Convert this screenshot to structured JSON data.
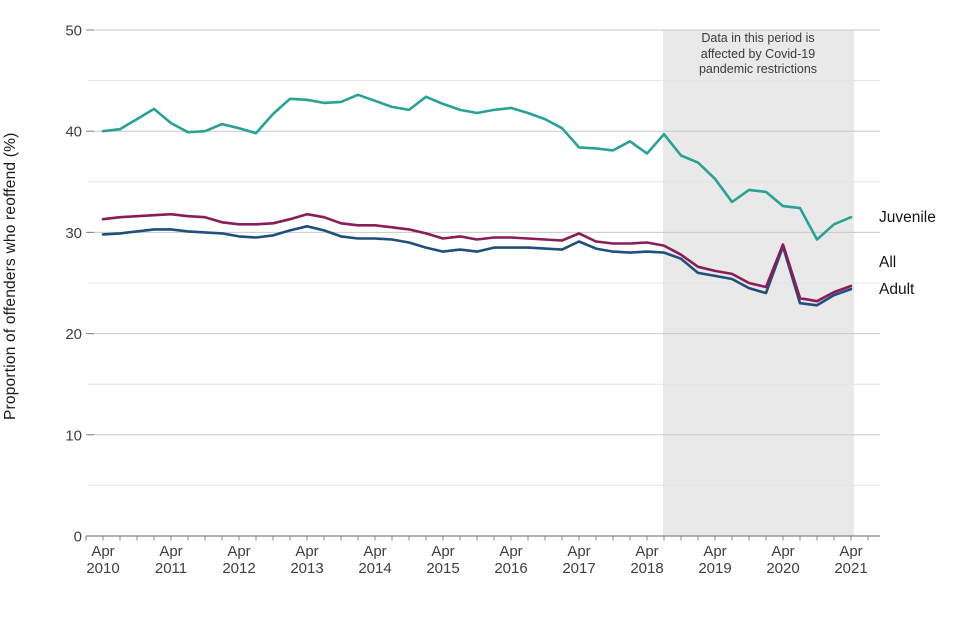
{
  "chart_data": {
    "type": "line",
    "title": "",
    "ylabel": "Proportion of offenders who reoffend (%)",
    "xlabel": "",
    "ylim": [
      0,
      50
    ],
    "yticks_major": [
      50,
      40,
      30,
      20,
      10,
      0
    ],
    "yticks_minor": [
      45,
      35,
      25,
      15,
      5
    ],
    "grid": "horizontal",
    "legend_position": "right-edge-labels",
    "x_tick_month": "Apr",
    "x_years": [
      "2010",
      "2011",
      "2012",
      "2013",
      "2014",
      "2015",
      "2016",
      "2017",
      "2018",
      "2019",
      "2020",
      "2021"
    ],
    "x": [
      "Apr 2010",
      "Jul 2010",
      "Oct 2010",
      "Jan 2011",
      "Apr 2011",
      "Jul 2011",
      "Oct 2011",
      "Jan 2012",
      "Apr 2012",
      "Jul 2012",
      "Oct 2012",
      "Jan 2013",
      "Apr 2013",
      "Jul 2013",
      "Oct 2013",
      "Jan 2014",
      "Apr 2014",
      "Jul 2014",
      "Oct 2014",
      "Jan 2015",
      "Apr 2015",
      "Jul 2015",
      "Oct 2015",
      "Jan 2016",
      "Apr 2016",
      "Jul 2016",
      "Oct 2016",
      "Jan 2017",
      "Apr 2017",
      "Jul 2017",
      "Oct 2017",
      "Jan 2018",
      "Apr 2018",
      "Jul 2018",
      "Oct 2018",
      "Jan 2019",
      "Apr 2019",
      "Jul 2019",
      "Oct 2019",
      "Jan 2020",
      "Apr 2020",
      "Jul 2020",
      "Oct 2020",
      "Jan 2021",
      "Apr 2021"
    ],
    "series": [
      {
        "name": "Juvenile",
        "color": "#28a197",
        "values": [
          40.0,
          40.2,
          41.2,
          42.2,
          40.8,
          39.9,
          40.0,
          40.7,
          40.3,
          39.8,
          41.7,
          43.2,
          43.1,
          42.8,
          42.9,
          43.6,
          43.0,
          42.4,
          42.1,
          43.4,
          42.7,
          42.1,
          41.8,
          42.1,
          42.3,
          41.8,
          41.2,
          40.3,
          38.4,
          38.3,
          38.1,
          39.0,
          37.8,
          39.7,
          37.6,
          36.9,
          35.3,
          33.0,
          34.2,
          34.0,
          32.6,
          32.4,
          29.3,
          30.8,
          31.5
        ]
      },
      {
        "name": "All",
        "color": "#8a1c56",
        "values": [
          31.3,
          31.5,
          31.6,
          31.7,
          31.8,
          31.6,
          31.5,
          31.0,
          30.8,
          30.8,
          30.9,
          31.3,
          31.8,
          31.5,
          30.9,
          30.7,
          30.7,
          30.5,
          30.3,
          29.9,
          29.4,
          29.6,
          29.3,
          29.5,
          29.5,
          29.4,
          29.3,
          29.2,
          29.9,
          29.1,
          28.9,
          28.9,
          29.0,
          28.7,
          27.8,
          26.6,
          26.2,
          25.9,
          25.0,
          24.6,
          28.8,
          23.5,
          23.2,
          24.1,
          24.7
        ]
      },
      {
        "name": "Adult",
        "color": "#204f7d",
        "values": [
          29.8,
          29.9,
          30.1,
          30.3,
          30.3,
          30.1,
          30.0,
          29.9,
          29.6,
          29.5,
          29.7,
          30.2,
          30.6,
          30.2,
          29.6,
          29.4,
          29.4,
          29.3,
          29.0,
          28.5,
          28.1,
          28.3,
          28.1,
          28.5,
          28.5,
          28.5,
          28.4,
          28.3,
          29.1,
          28.4,
          28.1,
          28.0,
          28.1,
          28.0,
          27.4,
          26.0,
          25.7,
          25.4,
          24.5,
          24.0,
          28.6,
          23.0,
          22.8,
          23.8,
          24.4
        ]
      }
    ],
    "shaded_region": {
      "from": "Jul 2018",
      "to": "Apr 2021",
      "fill": "#e9e9e9",
      "annotation_lines": [
        "Data in this period is",
        "affected by Covid-19",
        "pandemic restrictions"
      ]
    },
    "colors": {
      "axis": "#848484",
      "grid_major": "#c9c9c9",
      "grid_minor": "#e4e4e4",
      "tick_label": "#3f3f3f"
    }
  }
}
